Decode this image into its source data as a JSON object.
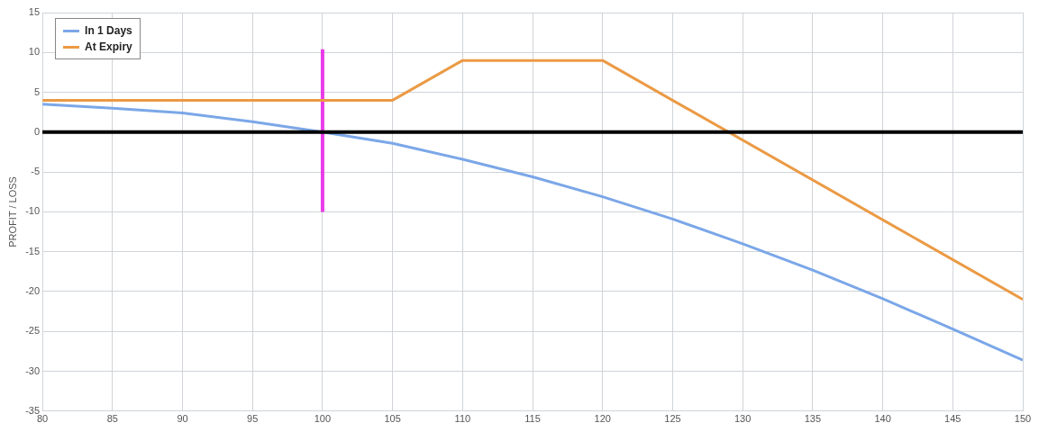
{
  "chart_data": {
    "type": "line",
    "ylabel": "PROFIT / LOSS",
    "xlim": [
      80,
      150
    ],
    "xticks": [
      80,
      85,
      90,
      95,
      100,
      105,
      110,
      115,
      120,
      125,
      130,
      135,
      140,
      145,
      150
    ],
    "ylim": [
      -35,
      15
    ],
    "yticks": [
      -35,
      -30,
      -25,
      -20,
      -15,
      -10,
      -5,
      0,
      5,
      10,
      15
    ],
    "grid": true,
    "legend": "top left",
    "marker": "none",
    "line_style": "solid",
    "series": [
      {
        "name": "In 1 Days",
        "color": "#7ba7e8",
        "x": [
          80,
          85,
          90,
          95,
          100,
          105,
          110,
          115,
          120,
          125,
          130,
          135,
          140,
          145,
          150
        ],
        "values": [
          3.5,
          3.0,
          2.4,
          1.3,
          0,
          -1.4,
          -3.4,
          -5.6,
          -8.1,
          -10.9,
          -14.0,
          -17.3,
          -20.9,
          -24.7,
          -28.6
        ]
      },
      {
        "name": "At Expiry",
        "color": "#eb9a45",
        "x": [
          80,
          105,
          110,
          120,
          150
        ],
        "values": [
          4,
          4,
          9,
          9,
          -21
        ]
      },
      {
        "type": "line",
        "color": "#e83ce8",
        "x": [
          100,
          100
        ],
        "values": [
          -10,
          10.4
        ]
      }
    ],
    "ref_lines": [
      {
        "axis": "y",
        "value": 0,
        "color": "#000000"
      }
    ]
  }
}
